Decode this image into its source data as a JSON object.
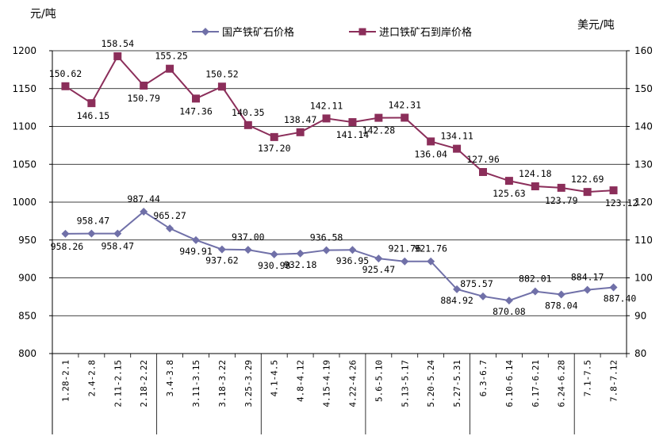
{
  "chart_data": {
    "type": "line",
    "y_left_unit": "元/吨",
    "y_right_unit": "美元/吨",
    "y_left_lim": [
      800,
      1200
    ],
    "y_left_ticks": [
      800,
      850,
      900,
      950,
      1000,
      1050,
      1100,
      1150,
      1200
    ],
    "y_right_lim": [
      80,
      160
    ],
    "y_right_ticks": [
      80,
      90,
      100,
      110,
      120,
      130,
      140,
      150,
      160
    ],
    "grid": "horizontal",
    "legend_position": "top-center",
    "categories": [
      "1.28-2.1",
      "2.4-2.8",
      "2.11-2.15",
      "2.18-2.22",
      "3.4-3.8",
      "3.11-3.15",
      "3.18-3.22",
      "3.25-3.29",
      "4.1-4.5",
      "4.8-4.12",
      "4.15-4.19",
      "4.22-4.26",
      "5.6-5.10",
      "5.13-5.17",
      "5.20-5.24",
      "5.27-5.31",
      "6.3-6.7",
      "6.10-6.14",
      "6.17-6.21",
      "6.24-6.28",
      "7.1-7.5",
      "7.8-7.12"
    ],
    "series": [
      {
        "name": "国产铁矿石价格",
        "axis": "left",
        "color": "#7070a8",
        "marker": "diamond",
        "values": [
          958.26,
          958.47,
          958.47,
          987.44,
          965.27,
          949.91,
          937.62,
          937.0,
          930.98,
          932.18,
          936.58,
          936.95,
          925.47,
          921.76,
          921.76,
          884.92,
          875.57,
          870.08,
          882.01,
          878.04,
          884.17,
          887.4
        ],
        "labels": [
          "958.26",
          "958.47",
          "958.47",
          "987.44",
          "965.27",
          "949.91",
          "937.62",
          "937.00",
          "930.98",
          "932.18",
          "936.58",
          "936.95",
          "925.47",
          "921.76",
          "921.76",
          "884.92",
          "875.57",
          "870.08",
          "882.01",
          "878.04",
          "884.17",
          "887.40"
        ]
      },
      {
        "name": "进口铁矿石到岸价格",
        "axis": "right",
        "color": "#8b2e5a",
        "marker": "square",
        "values": [
          150.62,
          146.15,
          158.54,
          150.79,
          155.25,
          147.36,
          150.52,
          140.35,
          137.2,
          138.47,
          142.11,
          141.14,
          142.28,
          142.31,
          136.04,
          134.11,
          127.96,
          125.63,
          124.18,
          123.79,
          122.69,
          123.12
        ],
        "labels": [
          "150.62",
          "146.15",
          "158.54",
          "150.79",
          "155.25",
          "147.36",
          "150.52",
          "140.35",
          "137.20",
          "138.47",
          "142.11",
          "141.14",
          "142.28",
          "142.31",
          "136.04",
          "134.11",
          "127.96",
          "125.63",
          "124.18",
          "123.79",
          "122.69",
          "123.12"
        ]
      }
    ]
  }
}
